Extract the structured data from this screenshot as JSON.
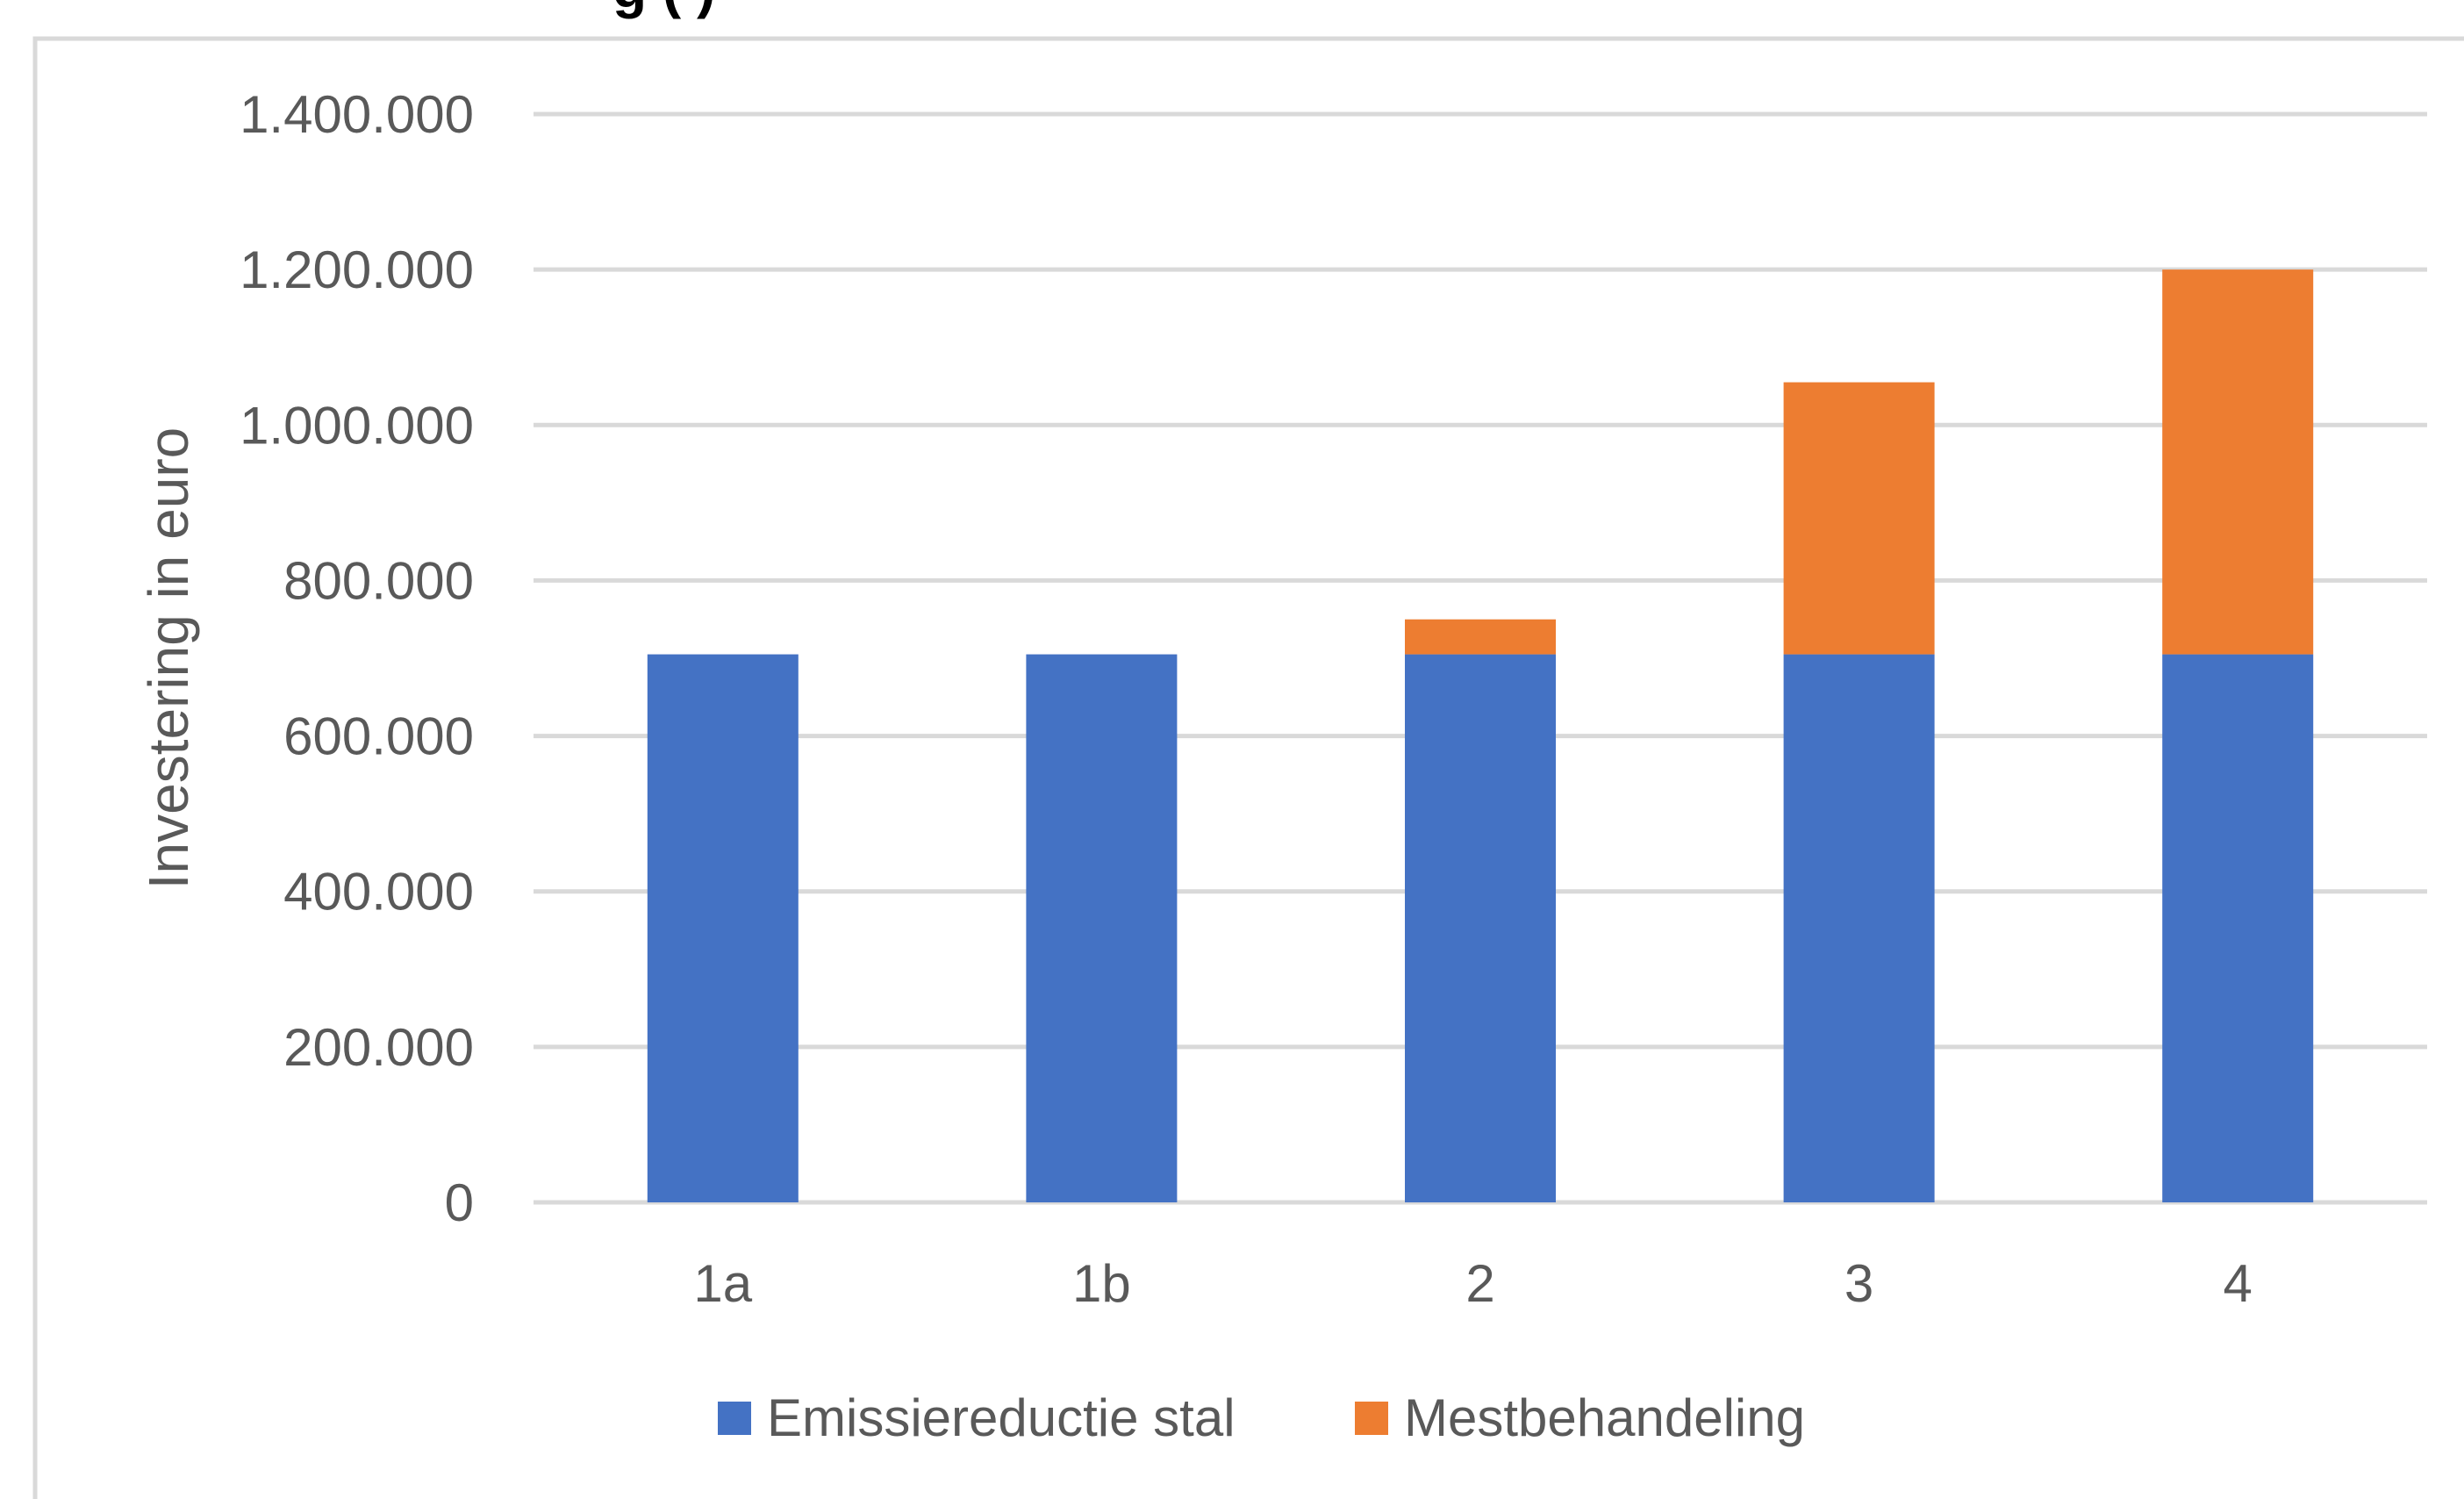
{
  "chart_data": {
    "type": "bar",
    "stacked": true,
    "title": "g (     )",
    "xlabel": "",
    "ylabel": "Investering in euro",
    "categories": [
      "1a",
      "1b",
      "2",
      "3",
      "4"
    ],
    "series": [
      {
        "name": "Emissiereductie stal",
        "values": [
          705000,
          705000,
          705000,
          705000,
          705000
        ],
        "color": "#4472C4"
      },
      {
        "name": "Mestbehandeling",
        "values": [
          0,
          0,
          45000,
          350000,
          495000
        ],
        "color": "#ED7D31"
      }
    ],
    "ylim": [
      0,
      1400000
    ],
    "yticks": [
      0,
      200000,
      400000,
      600000,
      800000,
      1000000,
      1200000,
      1400000
    ],
    "ytick_labels": [
      "0",
      "200.000",
      "400.000",
      "600.000",
      "800.000",
      "1.000.000",
      "1.200.000",
      "1.400.000"
    ],
    "grid": true,
    "legend_position": "bottom",
    "gridline_color": "#D9D9D9",
    "frame_color": "#D9D9D9"
  }
}
